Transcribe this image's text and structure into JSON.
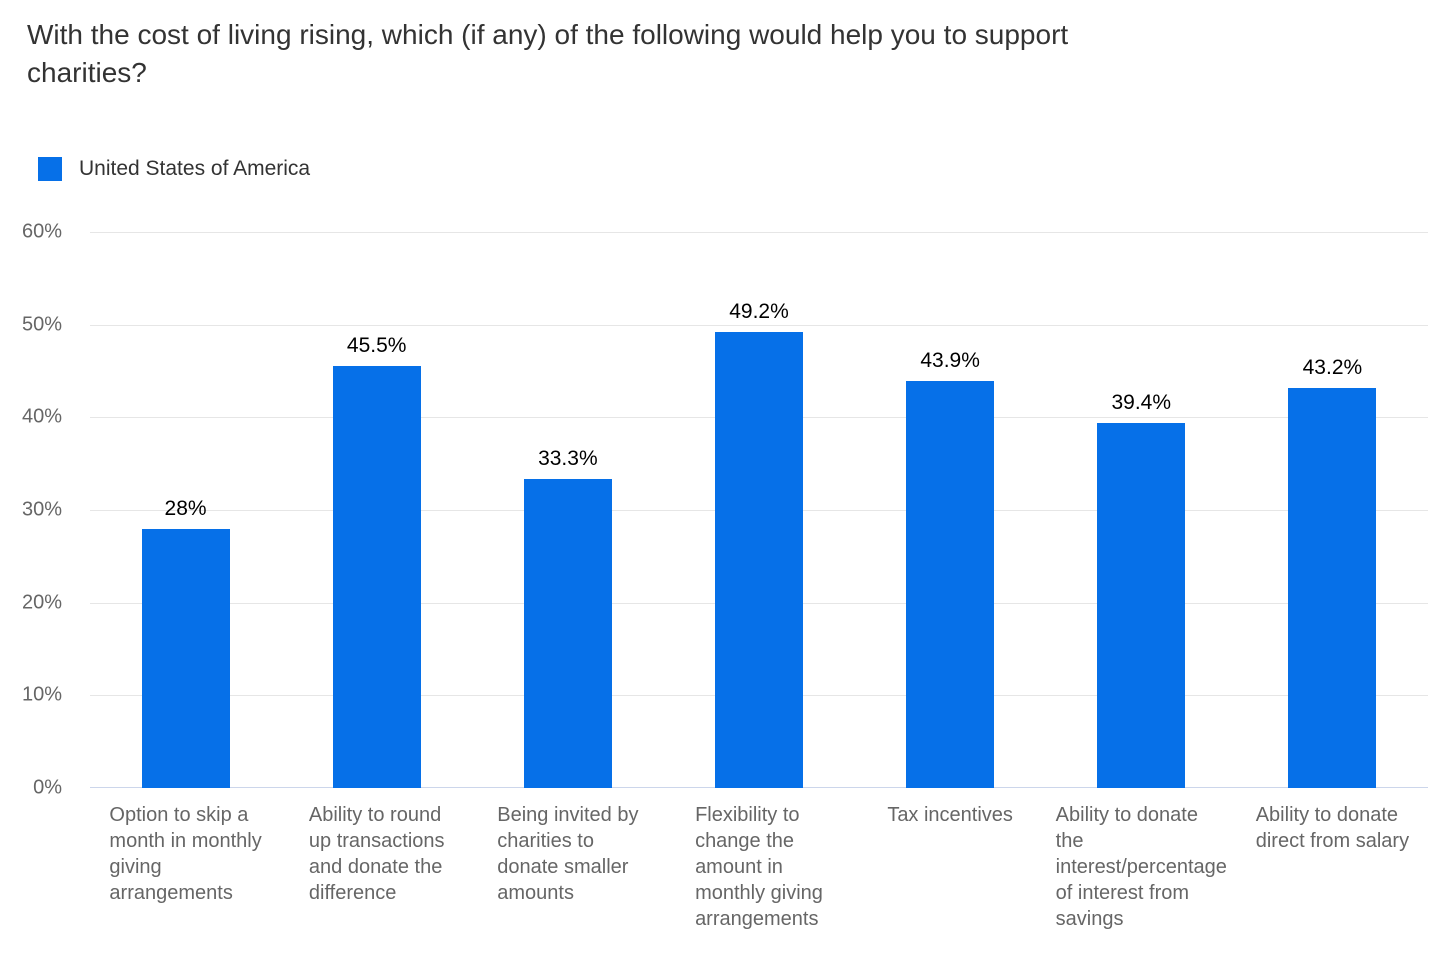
{
  "chart": {
    "title": "With the cost of living rising, which (if any) of the following would help you to support charities?",
    "legend": {
      "label": "United States of America"
    }
  },
  "colors": {
    "bar": "#0670e8",
    "gridline": "#e6e6e6",
    "axis_line": "#ccd6eb",
    "tick_text": "#666666",
    "title_text": "#333333",
    "value_text": "#000000"
  },
  "chart_data": {
    "type": "bar",
    "title": "With the cost of living rising, which (if any) of the following would help you to support charities?",
    "categories": [
      "Option to skip a month in monthly giving arrangements",
      "Ability to round up transactions and donate the difference",
      "Being invited by charities to donate smaller amounts",
      "Flexibility to change the amount in monthly giving arrangements",
      "Tax incentives",
      "Ability to donate the interest/percentage of interest from savings",
      "Ability to donate direct from salary"
    ],
    "series": [
      {
        "name": "United States of America",
        "values": [
          28,
          45.5,
          33.3,
          49.2,
          43.9,
          39.4,
          43.2
        ]
      }
    ],
    "value_labels": [
      "28%",
      "45.5%",
      "33.3%",
      "49.2%",
      "43.9%",
      "39.4%",
      "43.2%"
    ],
    "xtick_display": [
      "Option to skip a\nmonth in monthly\ngiving\narrangements",
      "Ability to round\nup transactions\nand donate the\ndifference",
      "Being invited by\ncharities to\ndonate smaller\namounts",
      "Flexibility to\nchange the\namount in\nmonthly giving\narrangements",
      "Tax incentives",
      "Ability to donate\nthe\ninterest/percentage\nof interest from\nsavings",
      "Ability to donate\ndirect from salary"
    ],
    "xlabel": "",
    "ylabel": "",
    "ylim": [
      0,
      60
    ],
    "yticks": [
      0,
      10,
      20,
      30,
      40,
      50,
      60
    ],
    "ytick_labels": [
      "0%",
      "10%",
      "20%",
      "30%",
      "40%",
      "50%",
      "60%"
    ],
    "grid": "horizontal",
    "legend_position": "top-left"
  }
}
